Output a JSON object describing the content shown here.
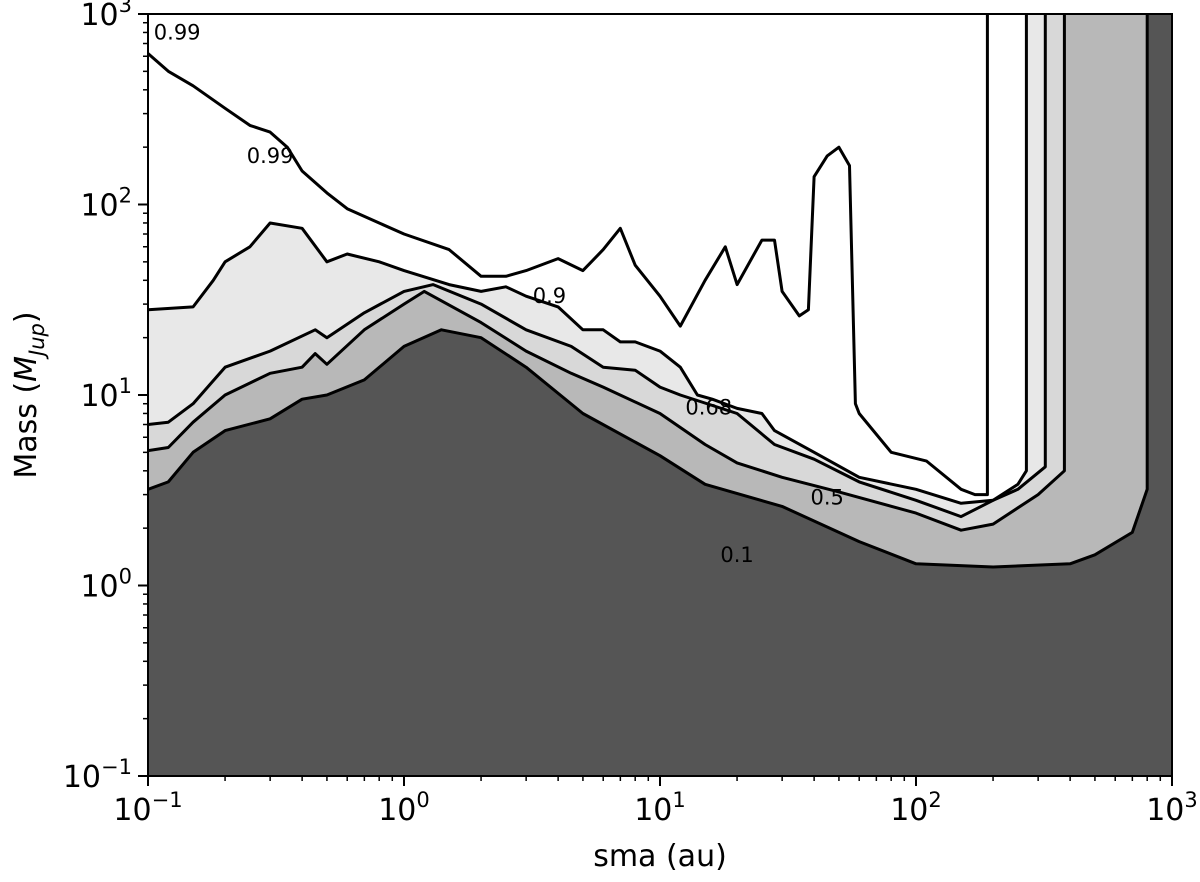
{
  "chart_data": {
    "type": "contour",
    "xlabel": "sma (au)",
    "ylabel": "Mass (M_Jup)",
    "ylabel_main": "Mass (",
    "ylabel_sub": "Jup",
    "ylabel_end": ")",
    "x_scale": "log",
    "y_scale": "log",
    "xlim": [
      0.1,
      1000
    ],
    "ylim": [
      0.1,
      1000
    ],
    "x_ticks": [
      {
        "base": "10",
        "exp": "−1",
        "value": 0.1
      },
      {
        "base": "10",
        "exp": "0",
        "value": 1
      },
      {
        "base": "10",
        "exp": "1",
        "value": 10
      },
      {
        "base": "10",
        "exp": "2",
        "value": 100
      },
      {
        "base": "10",
        "exp": "3",
        "value": 1000
      }
    ],
    "y_ticks": [
      {
        "base": "10",
        "exp": "−1",
        "value": 0.1
      },
      {
        "base": "10",
        "exp": "0",
        "value": 1
      },
      {
        "base": "10",
        "exp": "1",
        "value": 10
      },
      {
        "base": "10",
        "exp": "2",
        "value": 100
      },
      {
        "base": "10",
        "exp": "3",
        "value": 1000
      }
    ],
    "fill_colors": [
      "#555555",
      "#8a8a8a",
      "#b8b8b8",
      "#d8d8d8",
      "#e8e8e8",
      "#ffffff"
    ],
    "contours": [
      {
        "level": "0.1",
        "label": "0.1",
        "label_at": [
          20,
          1.45
        ],
        "points": [
          [
            0.1,
            3.2
          ],
          [
            0.12,
            3.5
          ],
          [
            0.15,
            5
          ],
          [
            0.2,
            6.5
          ],
          [
            0.3,
            7.5
          ],
          [
            0.4,
            9.5
          ],
          [
            0.5,
            10
          ],
          [
            0.7,
            12
          ],
          [
            1,
            18
          ],
          [
            1.4,
            22
          ],
          [
            2,
            20
          ],
          [
            3,
            14
          ],
          [
            5,
            8
          ],
          [
            10,
            4.8
          ],
          [
            15,
            3.4
          ],
          [
            30,
            2.6
          ],
          [
            60,
            1.7
          ],
          [
            100,
            1.3
          ],
          [
            200,
            1.25
          ],
          [
            400,
            1.3
          ],
          [
            500,
            1.45
          ],
          [
            700,
            1.9
          ],
          [
            800,
            3.2
          ],
          [
            800,
            1000
          ]
        ]
      },
      {
        "level": "0.5",
        "label": "0.5",
        "label_at": [
          45,
          2.9
        ],
        "points": [
          [
            0.1,
            5.1
          ],
          [
            0.12,
            5.3
          ],
          [
            0.15,
            7.2
          ],
          [
            0.2,
            10
          ],
          [
            0.3,
            13
          ],
          [
            0.4,
            14
          ],
          [
            0.45,
            16.5
          ],
          [
            0.5,
            14.5
          ],
          [
            0.7,
            22
          ],
          [
            1,
            30
          ],
          [
            1.2,
            35
          ],
          [
            2,
            24
          ],
          [
            3,
            17
          ],
          [
            4.5,
            13
          ],
          [
            6,
            11
          ],
          [
            10,
            8
          ],
          [
            15,
            5.5
          ],
          [
            20,
            4.4
          ],
          [
            30,
            3.7
          ],
          [
            50,
            3.1
          ],
          [
            100,
            2.4
          ],
          [
            150,
            1.95
          ],
          [
            200,
            2.1
          ],
          [
            300,
            3
          ],
          [
            380,
            4
          ],
          [
            380,
            1000
          ]
        ]
      },
      {
        "level": "0.68",
        "label": "0.68",
        "label_at": [
          15.5,
          8.6
        ],
        "points": [
          [
            0.1,
            7
          ],
          [
            0.12,
            7.2
          ],
          [
            0.15,
            9
          ],
          [
            0.2,
            14
          ],
          [
            0.3,
            17
          ],
          [
            0.45,
            22
          ],
          [
            0.5,
            20
          ],
          [
            0.7,
            27
          ],
          [
            1,
            35
          ],
          [
            1.3,
            38
          ],
          [
            2,
            30
          ],
          [
            3,
            22
          ],
          [
            4.5,
            18
          ],
          [
            6,
            14
          ],
          [
            8,
            13.5
          ],
          [
            10,
            11
          ],
          [
            12,
            10
          ],
          [
            20,
            8
          ],
          [
            28,
            5.5
          ],
          [
            40,
            4.6
          ],
          [
            60,
            3.5
          ],
          [
            100,
            2.8
          ],
          [
            150,
            2.3
          ],
          [
            200,
            2.8
          ],
          [
            250,
            3.2
          ],
          [
            320,
            4.2
          ],
          [
            320,
            1000
          ]
        ]
      },
      {
        "level": "0.9",
        "label": "0.9",
        "label_at": [
          3.7,
          33
        ],
        "points": [
          [
            0.1,
            28
          ],
          [
            0.15,
            29
          ],
          [
            0.18,
            40
          ],
          [
            0.2,
            50
          ],
          [
            0.25,
            60
          ],
          [
            0.3,
            80
          ],
          [
            0.4,
            75
          ],
          [
            0.5,
            50
          ],
          [
            0.6,
            55
          ],
          [
            0.8,
            50
          ],
          [
            1,
            45
          ],
          [
            1.5,
            38
          ],
          [
            2,
            35
          ],
          [
            2.5,
            37
          ],
          [
            3,
            33
          ],
          [
            4,
            29
          ],
          [
            5,
            22
          ],
          [
            6,
            22
          ],
          [
            7,
            19
          ],
          [
            8,
            19
          ],
          [
            10,
            17
          ],
          [
            12,
            14
          ],
          [
            14,
            10
          ],
          [
            16,
            9.5
          ],
          [
            20,
            8.5
          ],
          [
            25,
            8
          ],
          [
            28,
            6.5
          ],
          [
            40,
            5
          ],
          [
            60,
            3.7
          ],
          [
            100,
            3.2
          ],
          [
            150,
            2.7
          ],
          [
            200,
            2.8
          ],
          [
            250,
            3.4
          ],
          [
            270,
            4
          ],
          [
            270,
            1000
          ]
        ]
      },
      {
        "level": "0.99",
        "label": "0.99",
        "label_at": [
          0.3,
          180
        ],
        "points": [
          [
            0.1,
            620
          ],
          [
            0.12,
            500
          ],
          [
            0.15,
            420
          ],
          [
            0.2,
            320
          ],
          [
            0.25,
            260
          ],
          [
            0.3,
            240
          ],
          [
            0.35,
            200
          ],
          [
            0.4,
            150
          ],
          [
            0.5,
            115
          ],
          [
            0.6,
            95
          ],
          [
            0.8,
            80
          ],
          [
            1,
            70
          ],
          [
            1.5,
            58
          ],
          [
            2,
            42
          ],
          [
            2.5,
            42
          ],
          [
            3,
            45
          ],
          [
            4,
            52
          ],
          [
            5,
            45
          ],
          [
            6,
            58
          ],
          [
            7,
            75
          ],
          [
            8,
            48
          ],
          [
            10,
            33
          ],
          [
            12,
            23
          ],
          [
            15,
            40
          ],
          [
            18,
            60
          ],
          [
            20,
            38
          ],
          [
            25,
            65
          ],
          [
            28,
            65
          ],
          [
            30,
            35
          ],
          [
            35,
            26
          ],
          [
            38,
            28
          ],
          [
            40,
            140
          ],
          [
            45,
            180
          ],
          [
            50,
            200
          ],
          [
            55,
            160
          ],
          [
            58,
            9
          ],
          [
            60,
            8
          ],
          [
            80,
            5
          ],
          [
            110,
            4.5
          ],
          [
            150,
            3.2
          ],
          [
            170,
            3
          ],
          [
            190,
            3
          ],
          [
            190,
            1000
          ]
        ]
      }
    ],
    "contour_labels_extra": [
      {
        "label": "0.99",
        "label_at": [
          0.13,
          800
        ]
      }
    ]
  }
}
